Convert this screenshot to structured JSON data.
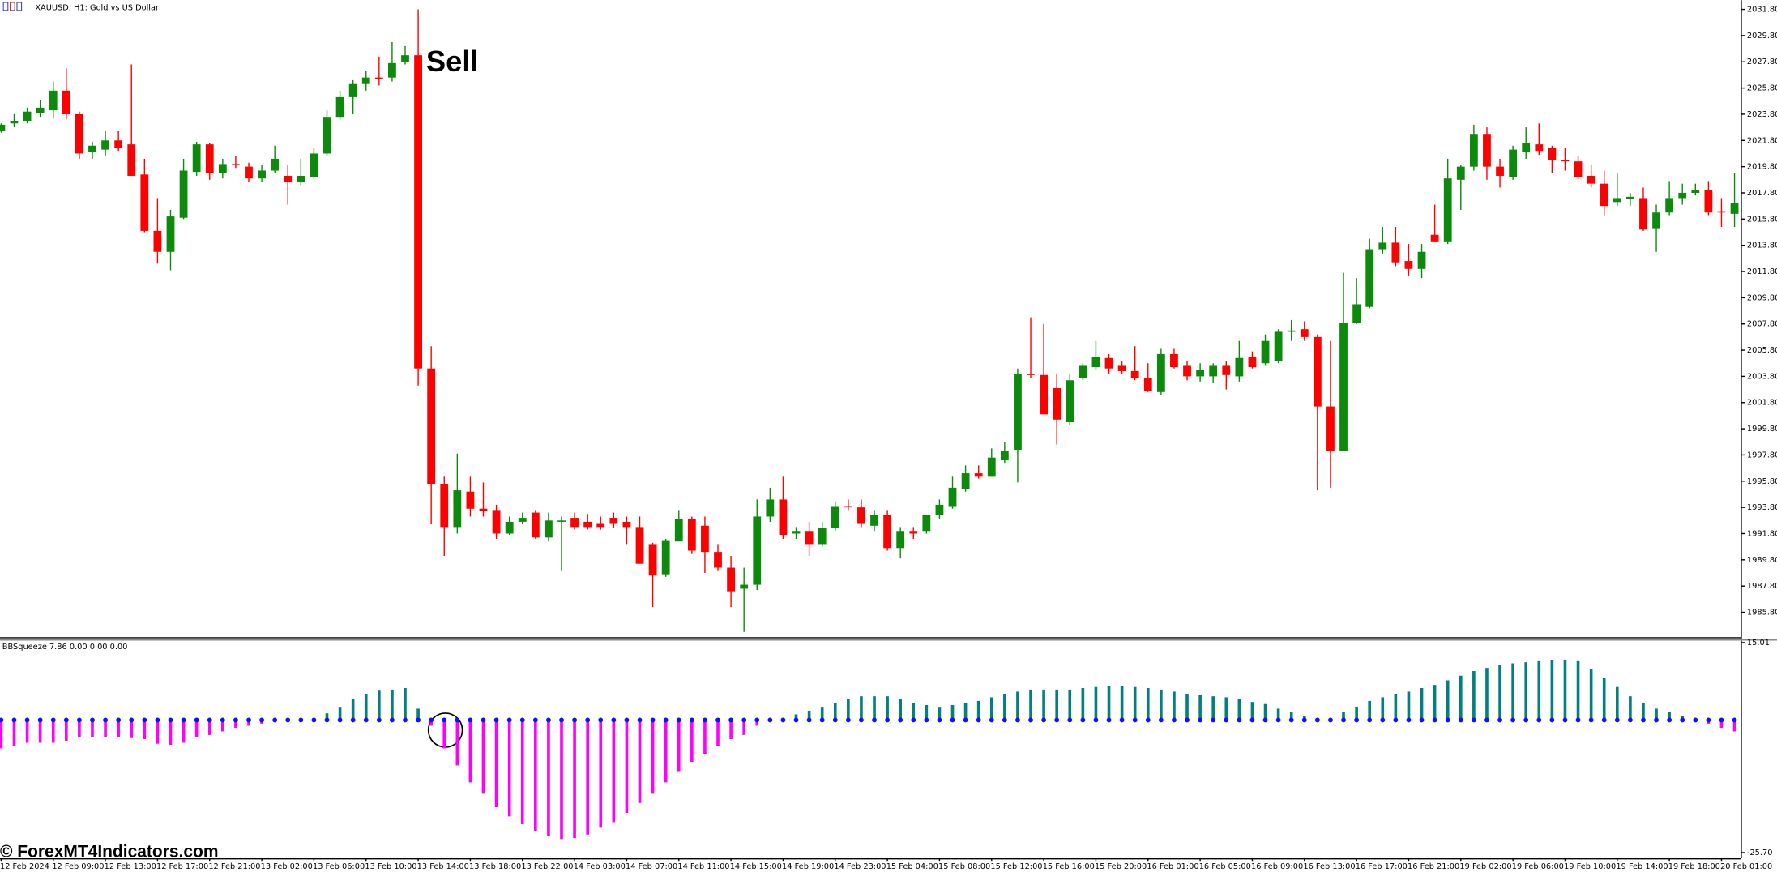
{
  "symbol_title": "XAUUSD, H1: Gold vs US Dollar",
  "watermark": "© ForexMT4Indicators.com",
  "chart_data": [
    {
      "type": "candlestick",
      "annotation": "Sell",
      "up_color": "#0b8a0b",
      "down_color": "#ff0000",
      "ylim": [
        1983.9,
        2032.5
      ],
      "yticks": [
        {
          "value": 2031.8,
          "label": "2031.80"
        },
        {
          "value": 2029.8,
          "label": "2029.80"
        },
        {
          "value": 2027.8,
          "label": "2027.80"
        },
        {
          "value": 2025.8,
          "label": "2025.80"
        },
        {
          "value": 2023.8,
          "label": "2023.80"
        },
        {
          "value": 2021.8,
          "label": "2021.80"
        },
        {
          "value": 2019.8,
          "label": "2019.80"
        },
        {
          "value": 2017.8,
          "label": "2017.80"
        },
        {
          "value": 2015.8,
          "label": "2015.80"
        },
        {
          "value": 2013.8,
          "label": "2013.80"
        },
        {
          "value": 2011.8,
          "label": "2011.80"
        },
        {
          "value": 2009.8,
          "label": "2009.80"
        },
        {
          "value": 2007.8,
          "label": "2007.80"
        },
        {
          "value": 2005.8,
          "label": "2005.80"
        },
        {
          "value": 2003.8,
          "label": "2003.80"
        },
        {
          "value": 2001.8,
          "label": "2001.80"
        },
        {
          "value": 1999.8,
          "label": "1999.80"
        },
        {
          "value": 1997.8,
          "label": "1997.80"
        },
        {
          "value": 1995.8,
          "label": "1995.80"
        },
        {
          "value": 1993.8,
          "label": "1993.80"
        },
        {
          "value": 1991.8,
          "label": "1991.80"
        },
        {
          "value": 1989.8,
          "label": "1989.80"
        },
        {
          "value": 1987.8,
          "label": "1987.80"
        },
        {
          "value": 1985.8,
          "label": "1985.80"
        }
      ],
      "xticks": [
        {
          "value": 0,
          "label": "12 Feb 2024"
        },
        {
          "value": 4,
          "label": "12 Feb 09:00"
        },
        {
          "value": 8,
          "label": "12 Feb 13:00"
        },
        {
          "value": 12,
          "label": "12 Feb 17:00"
        },
        {
          "value": 16,
          "label": "12 Feb 21:00"
        },
        {
          "value": 20,
          "label": "13 Feb 02:00"
        },
        {
          "value": 24,
          "label": "13 Feb 06:00"
        },
        {
          "value": 28,
          "label": "13 Feb 10:00"
        },
        {
          "value": 32,
          "label": "13 Feb 14:00"
        },
        {
          "value": 36,
          "label": "13 Feb 18:00"
        },
        {
          "value": 40,
          "label": "13 Feb 22:00"
        },
        {
          "value": 44,
          "label": "14 Feb 03:00"
        },
        {
          "value": 48,
          "label": "14 Feb 07:00"
        },
        {
          "value": 52,
          "label": "14 Feb 11:00"
        },
        {
          "value": 56,
          "label": "14 Feb 15:00"
        },
        {
          "value": 60,
          "label": "14 Feb 19:00"
        },
        {
          "value": 64,
          "label": "14 Feb 23:00"
        },
        {
          "value": 68,
          "label": "15 Feb 04:00"
        },
        {
          "value": 72,
          "label": "15 Feb 08:00"
        },
        {
          "value": 76,
          "label": "15 Feb 12:00"
        },
        {
          "value": 80,
          "label": "15 Feb 16:00"
        },
        {
          "value": 84,
          "label": "15 Feb 20:00"
        },
        {
          "value": 88,
          "label": "16 Feb 01:00"
        },
        {
          "value": 92,
          "label": "16 Feb 05:00"
        },
        {
          "value": 96,
          "label": "16 Feb 09:00"
        },
        {
          "value": 100,
          "label": "16 Feb 13:00"
        },
        {
          "value": 104,
          "label": "16 Feb 17:00"
        },
        {
          "value": 108,
          "label": "16 Feb 21:00"
        },
        {
          "value": 112,
          "label": "19 Feb 02:00"
        },
        {
          "value": 116,
          "label": "19 Feb 06:00"
        },
        {
          "value": 120,
          "label": "19 Feb 10:00"
        },
        {
          "value": 124,
          "label": "19 Feb 14:00"
        },
        {
          "value": 128,
          "label": "19 Feb 18:00"
        },
        {
          "value": 132,
          "label": "20 Feb 01:00"
        }
      ],
      "open": [
        2022.5,
        2023.1,
        2023.3,
        2023.9,
        2024.1,
        2025.6,
        2023.8,
        2020.9,
        2021.1,
        2021.8,
        2021.5,
        2019.2,
        2014.9,
        2013.3,
        2015.9,
        2019.4,
        2021.5,
        2019.3,
        2020.0,
        2019.8,
        2018.9,
        2019.5,
        2019.1,
        2018.6,
        2019.0,
        2020.8,
        2023.6,
        2025.1,
        2026.1,
        2026.6,
        2026.6,
        2027.8,
        2028.3,
        2004.4,
        1995.6,
        1992.3,
        1995.0,
        1993.7,
        1993.6,
        1991.8,
        1992.7,
        1993.4,
        1991.5,
        1992.7,
        1993.0,
        1992.7,
        1992.6,
        1993.0,
        1992.7,
        1992.3,
        1991.0,
        1988.7,
        1991.2,
        1992.9,
        1992.4,
        1990.4,
        1989.2,
        1987.6,
        1987.9,
        1993.1,
        1994.4,
        1991.8,
        1992.0,
        1991.0,
        1992.2,
        1993.9,
        1993.8,
        1992.4,
        1993.2,
        1990.7,
        1992.0,
        1992.0,
        1993.2,
        1993.9,
        1995.2,
        1996.4,
        1996.2,
        1997.4,
        1998.2,
        2004.0,
        2003.9,
        2002.9,
        2000.3,
        2003.7,
        2004.5,
        2005.2,
        2004.6,
        2004.2,
        2003.7,
        2002.6,
        2005.5,
        2004.6,
        2003.8,
        2003.8,
        2004.6,
        2003.8,
        2005.3,
        2004.8,
        2005.0,
        2007.2,
        2007.4,
        2006.8,
        2001.5,
        1998.1,
        2007.9,
        2009.1,
        2013.5,
        2014.0,
        2012.6,
        2012.0,
        2014.6,
        2014.1,
        2018.8,
        2019.8,
        2022.3,
        2019.8,
        2019.0,
        2020.9,
        2021.5,
        2021.2,
        2020.3,
        2020.2,
        2019.1,
        2018.5,
        2017.1,
        2017.3,
        2017.4,
        2015.1,
        2016.3,
        2017.4,
        2017.8,
        2018.0,
        2016.4,
        2016.2
      ],
      "high": [
        2023.1,
        2023.8,
        2024.3,
        2024.9,
        2026.3,
        2027.3,
        2024.0,
        2021.7,
        2022.5,
        2022.5,
        2027.6,
        2020.4,
        2017.4,
        2016.5,
        2020.4,
        2021.7,
        2021.6,
        2020.4,
        2020.6,
        2020.1,
        2019.9,
        2021.4,
        2019.9,
        2020.4,
        2021.2,
        2024.1,
        2025.6,
        2026.4,
        2027.1,
        2028.2,
        2029.3,
        2029.0,
        2031.8,
        2006.1,
        1996.2,
        1997.9,
        1996.2,
        1995.7,
        1994.0,
        1993.1,
        1993.4,
        1993.6,
        1993.4,
        1993.1,
        1993.4,
        1993.3,
        1993.1,
        1993.4,
        1993.1,
        1993.1,
        1991.1,
        1991.4,
        1993.6,
        1993.1,
        1993.1,
        1991.0,
        1990.1,
        1989.2,
        1994.4,
        1995.3,
        1996.2,
        1992.3,
        1992.7,
        1992.7,
        1994.2,
        1994.4,
        1994.4,
        1993.6,
        1993.6,
        1992.3,
        1992.3,
        1993.1,
        1994.4,
        1996.2,
        1997.0,
        1997.0,
        1998.3,
        1998.8,
        2004.4,
        2008.3,
        2007.8,
        2004.0,
        2004.0,
        2004.8,
        2006.5,
        2005.5,
        2005.0,
        2006.1,
        2004.8,
        2005.9,
        2005.9,
        2005.0,
        2004.8,
        2004.8,
        2005.0,
        2006.5,
        2005.7,
        2007.0,
        2007.4,
        2008.1,
        2008.0,
        2007.0,
        2006.5,
        2011.7,
        2011.3,
        2014.3,
        2015.2,
        2015.2,
        2013.9,
        2013.9,
        2016.9,
        2020.4,
        2019.9,
        2023.0,
        2022.8,
        2020.4,
        2021.4,
        2022.8,
        2023.1,
        2021.4,
        2021.2,
        2020.6,
        2019.9,
        2019.5,
        2019.3,
        2017.8,
        2018.2,
        2016.9,
        2018.7,
        2018.5,
        2018.5,
        2018.7,
        2017.4,
        2019.3
      ],
      "low": [
        2022.4,
        2022.8,
        2023.1,
        2023.6,
        2023.5,
        2023.4,
        2020.4,
        2020.4,
        2020.6,
        2021.0,
        2019.1,
        2014.8,
        2012.4,
        2011.9,
        2015.8,
        2019.1,
        2018.8,
        2018.9,
        2019.7,
        2018.6,
        2018.6,
        2019.3,
        2016.9,
        2018.4,
        2018.9,
        2020.6,
        2023.4,
        2023.8,
        2025.6,
        2026.0,
        2026.3,
        2027.6,
        2003.1,
        1992.5,
        1990.1,
        1991.8,
        1993.1,
        1993.1,
        1991.4,
        1991.7,
        1992.5,
        1991.4,
        1991.2,
        1989.0,
        1992.1,
        1992.1,
        1992.1,
        1992.2,
        1991.0,
        1989.5,
        1986.2,
        1988.5,
        1991.2,
        1990.3,
        1988.8,
        1989.0,
        1986.2,
        1984.3,
        1987.5,
        1992.7,
        1991.4,
        1991.4,
        1990.1,
        1990.8,
        1992.0,
        1993.6,
        1992.3,
        1992.0,
        1990.5,
        1989.9,
        1991.4,
        1991.8,
        1992.9,
        1993.7,
        1995.0,
        1996.0,
        1996.2,
        1997.2,
        1995.7,
        2003.7,
        2000.9,
        1998.6,
        2000.1,
        2003.5,
        2004.3,
        2004.0,
        2004.0,
        2003.5,
        2002.6,
        2002.4,
        2004.4,
        2003.5,
        2003.4,
        2003.3,
        2002.8,
        2003.4,
        2004.4,
        2004.6,
        2004.8,
        2006.5,
        2006.5,
        1995.1,
        1995.3,
        1998.1,
        2007.8,
        2009.0,
        2013.1,
        2012.2,
        2011.5,
        2011.3,
        2014.1,
        2013.9,
        2016.5,
        2019.5,
        2018.8,
        2018.2,
        2018.8,
        2020.4,
        2020.7,
        2019.3,
        2019.5,
        2018.8,
        2018.2,
        2016.1,
        2016.8,
        2016.8,
        2014.9,
        2013.3,
        2016.1,
        2016.9,
        2017.6,
        2016.1,
        2015.2,
        2015.2
      ],
      "close": [
        2023.0,
        2023.3,
        2024.0,
        2024.3,
        2025.6,
        2023.8,
        2020.8,
        2021.4,
        2021.8,
        2021.2,
        2019.1,
        2014.9,
        2013.3,
        2016.0,
        2019.5,
        2021.5,
        2019.3,
        2020.0,
        2019.9,
        2018.9,
        2019.5,
        2020.4,
        2018.6,
        2019.1,
        2020.8,
        2023.6,
        2025.1,
        2026.1,
        2026.6,
        2026.5,
        2027.7,
        2028.3,
        2004.4,
        1995.6,
        1992.3,
        1995.1,
        1993.7,
        1993.5,
        1991.8,
        1992.7,
        1993.0,
        1991.5,
        1992.8,
        1992.8,
        1992.3,
        1992.3,
        1992.3,
        1992.6,
        1992.3,
        1989.5,
        1988.6,
        1991.3,
        1992.9,
        1990.5,
        1990.4,
        1989.2,
        1987.4,
        1987.9,
        1993.1,
        1994.4,
        1991.7,
        1992.0,
        1991.0,
        1992.2,
        1993.9,
        1993.8,
        1992.6,
        1993.2,
        1990.7,
        1992.0,
        1991.8,
        1993.2,
        1994.0,
        1995.3,
        1996.4,
        1996.2,
        1997.6,
        1998.1,
        2004.0,
        2003.9,
        2000.9,
        2000.5,
        2003.5,
        2004.6,
        2005.3,
        2004.4,
        2004.2,
        2003.7,
        2002.7,
        2005.5,
        2004.5,
        2003.8,
        2004.3,
        2004.6,
        2003.9,
        2005.2,
        2004.5,
        2006.5,
        2007.2,
        2007.3,
        2006.8,
        2001.5,
        1998.1,
        2007.9,
        2009.3,
        2013.5,
        2014.0,
        2012.5,
        2012.0,
        2013.3,
        2014.1,
        2018.9,
        2019.8,
        2022.3,
        2019.8,
        2019.1,
        2021.1,
        2021.6,
        2021.0,
        2020.3,
        2020.2,
        2019.0,
        2018.5,
        2016.8,
        2017.4,
        2017.5,
        2015.0,
        2016.3,
        2017.4,
        2017.8,
        2018.0,
        2016.3,
        2016.3,
        2017.0
      ]
    },
    {
      "type": "bar",
      "title": "BBSqueeze 7.86 0.00 0.00 0.00",
      "positive_color": "#008080",
      "negative_color": "#ff00ff",
      "dot_color": "#1010ff",
      "ylim": [
        -26.8,
        15.4
      ],
      "yticks": [
        15.01,
        {
          "value": -25.7,
          "label": "-25.70"
        }
      ],
      "values": [
        -5.5,
        -5.1,
        -4.4,
        -4.4,
        -4.4,
        -4.0,
        -3.3,
        -3.3,
        -3.3,
        -3.3,
        -3.5,
        -3.7,
        -4.6,
        -4.8,
        -4.4,
        -3.3,
        -2.9,
        -2.2,
        -1.5,
        -1.1,
        -0.7,
        -0.4,
        -0.2,
        0.1,
        0.4,
        1.3,
        2.4,
        4.0,
        5.1,
        5.7,
        5.9,
        6.2,
        2.2,
        -1.1,
        -5.5,
        -8.8,
        -12.1,
        -14.3,
        -16.9,
        -18.7,
        -20.2,
        -21.6,
        -22.4,
        -23.1,
        -22.9,
        -22.2,
        -20.9,
        -19.8,
        -18.0,
        -16.1,
        -14.3,
        -12.1,
        -9.9,
        -8.1,
        -6.6,
        -5.1,
        -3.7,
        -2.9,
        -1.1,
        -0.2,
        0.2,
        1.1,
        1.8,
        2.4,
        3.3,
        4.0,
        4.6,
        4.6,
        4.6,
        4.0,
        3.3,
        2.9,
        2.4,
        2.9,
        3.3,
        3.7,
        4.4,
        5.1,
        5.5,
        5.9,
        5.9,
        5.9,
        5.9,
        6.2,
        6.4,
        6.6,
        6.6,
        6.4,
        6.2,
        5.9,
        5.5,
        5.1,
        4.8,
        4.6,
        4.4,
        4.0,
        3.5,
        3.1,
        2.2,
        1.5,
        0.7,
        0.2,
        0.2,
        1.5,
        2.6,
        3.7,
        4.4,
        5.1,
        5.5,
        6.2,
        6.8,
        7.7,
        8.6,
        9.5,
        10.1,
        10.6,
        11.0,
        11.2,
        11.4,
        11.7,
        11.7,
        11.4,
        9.9,
        8.1,
        6.4,
        4.6,
        3.3,
        2.2,
        1.5,
        0.7,
        0.4,
        -0.7,
        -1.5,
        -2.2
      ]
    }
  ]
}
